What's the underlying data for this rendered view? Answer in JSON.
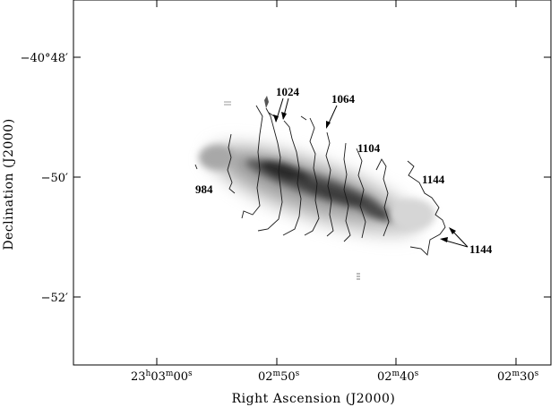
{
  "figure": {
    "xlabel": "Right Ascension (J2000)",
    "ylabel": "Declination (J2000)",
    "x_ticks": [
      {
        "hm": "23",
        "m": "03",
        "s": "00"
      },
      {
        "m": "02",
        "s": "50"
      },
      {
        "m": "02",
        "s": "40"
      },
      {
        "m": "02",
        "s": "30"
      }
    ],
    "y_ticks": [
      "−40°48′",
      "−50′",
      "−52′"
    ],
    "contour_labels": [
      "1024",
      "1064",
      "1104",
      "1144",
      "1144",
      "984"
    ],
    "contour_units_note": "",
    "image": "greyscale galaxy image with velocity contours"
  }
}
